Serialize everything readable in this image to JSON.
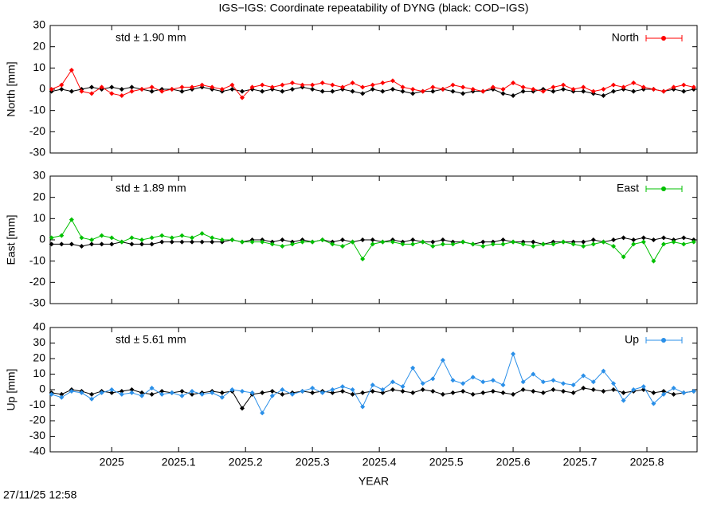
{
  "title": "IGS−IGS: Coordinate repeatability of DYNG (black: COD−IGS)",
  "x_label": "YEAR",
  "timestamp": "27/11/25 12:58",
  "chart_data": [
    {
      "type": "line",
      "y_label": "North [mm]",
      "annotation": "std ± 1.90 mm",
      "annotation_color": "#ff0000",
      "xlim": [
        2024.908,
        2025.875
      ],
      "xticks": [
        2025,
        2025.1,
        2025.2,
        2025.3,
        2025.4,
        2025.5,
        2025.6,
        2025.7,
        2025.8
      ],
      "ylim": [
        -30,
        30
      ],
      "yticks": [
        -30,
        -20,
        -10,
        0,
        10,
        20,
        30
      ],
      "x": [
        2024.91,
        2024.925,
        2024.94,
        2024.955,
        2024.97,
        2024.985,
        2025.0,
        2025.015,
        2025.03,
        2025.045,
        2025.06,
        2025.075,
        2025.09,
        2025.105,
        2025.12,
        2025.135,
        2025.15,
        2025.165,
        2025.18,
        2025.195,
        2025.21,
        2025.225,
        2025.24,
        2025.255,
        2025.27,
        2025.285,
        2025.3,
        2025.315,
        2025.33,
        2025.345,
        2025.36,
        2025.375,
        2025.39,
        2025.405,
        2025.42,
        2025.435,
        2025.45,
        2025.465,
        2025.48,
        2025.495,
        2025.51,
        2025.525,
        2025.54,
        2025.555,
        2025.57,
        2025.585,
        2025.6,
        2025.615,
        2025.63,
        2025.645,
        2025.66,
        2025.675,
        2025.69,
        2025.705,
        2025.72,
        2025.735,
        2025.75,
        2025.765,
        2025.78,
        2025.795,
        2025.81,
        2025.825,
        2025.84,
        2025.855,
        2025.87
      ],
      "series": [
        {
          "color": "#000000",
          "values": [
            -1,
            0,
            -1,
            0,
            1,
            0,
            1,
            0,
            1,
            0,
            -1,
            0,
            0,
            -1,
            0,
            1,
            0,
            -1,
            0,
            -1,
            0,
            -1,
            0,
            -1,
            0,
            1,
            0,
            -1,
            -1,
            0,
            -1,
            -2,
            0,
            -1,
            0,
            -1,
            -2,
            -1,
            -1,
            0,
            -1,
            -2,
            -1,
            -1,
            0,
            -2,
            -3,
            -1,
            -1,
            0,
            -1,
            0,
            -1,
            -1,
            -2,
            -3,
            -1,
            0,
            -1,
            0,
            0,
            -1,
            0,
            -1,
            0
          ]
        },
        {
          "name": "North",
          "color": "#ff0000",
          "values": [
            0,
            2,
            9,
            -1,
            -2,
            1,
            -2,
            -3,
            -1,
            0,
            1,
            -1,
            0,
            1,
            1,
            2,
            1,
            0,
            2,
            -4,
            1,
            2,
            1,
            2,
            3,
            2,
            2,
            3,
            2,
            1,
            3,
            1,
            2,
            3,
            4,
            1,
            0,
            -1,
            1,
            0,
            2,
            1,
            0,
            -1,
            1,
            0,
            3,
            1,
            0,
            -1,
            1,
            2,
            0,
            1,
            -1,
            0,
            2,
            1,
            3,
            1,
            0,
            -1,
            1,
            2,
            1
          ]
        }
      ]
    },
    {
      "type": "line",
      "y_label": "East [mm]",
      "annotation": "std ± 1.89 mm",
      "annotation_color": "#00c000",
      "xlim": [
        2024.908,
        2025.875
      ],
      "xticks": [
        2025,
        2025.1,
        2025.2,
        2025.3,
        2025.4,
        2025.5,
        2025.6,
        2025.7,
        2025.8
      ],
      "ylim": [
        -30,
        30
      ],
      "yticks": [
        -30,
        -20,
        -10,
        0,
        10,
        20,
        30
      ],
      "x": [
        2024.91,
        2024.925,
        2024.94,
        2024.955,
        2024.97,
        2024.985,
        2025.0,
        2025.015,
        2025.03,
        2025.045,
        2025.06,
        2025.075,
        2025.09,
        2025.105,
        2025.12,
        2025.135,
        2025.15,
        2025.165,
        2025.18,
        2025.195,
        2025.21,
        2025.225,
        2025.24,
        2025.255,
        2025.27,
        2025.285,
        2025.3,
        2025.315,
        2025.33,
        2025.345,
        2025.36,
        2025.375,
        2025.39,
        2025.405,
        2025.42,
        2025.435,
        2025.45,
        2025.465,
        2025.48,
        2025.495,
        2025.51,
        2025.525,
        2025.54,
        2025.555,
        2025.57,
        2025.585,
        2025.6,
        2025.615,
        2025.63,
        2025.645,
        2025.66,
        2025.675,
        2025.69,
        2025.705,
        2025.72,
        2025.735,
        2025.75,
        2025.765,
        2025.78,
        2025.795,
        2025.81,
        2025.825,
        2025.84,
        2025.855,
        2025.87
      ],
      "series": [
        {
          "color": "#000000",
          "values": [
            -2,
            -2,
            -2,
            -3,
            -2,
            -2,
            -2,
            -1,
            -2,
            -2,
            -2,
            -1,
            -1,
            -1,
            -1,
            -1,
            -1,
            -1,
            0,
            -1,
            0,
            0,
            -1,
            0,
            -1,
            0,
            -1,
            0,
            -1,
            0,
            -1,
            0,
            0,
            -1,
            0,
            -1,
            0,
            -1,
            -1,
            0,
            -1,
            -1,
            -2,
            -1,
            -1,
            0,
            -1,
            -1,
            -1,
            -2,
            -1,
            -1,
            -1,
            -1,
            0,
            -1,
            0,
            1,
            0,
            1,
            0,
            1,
            0,
            1,
            0
          ]
        },
        {
          "name": "East",
          "color": "#00c000",
          "values": [
            1,
            2,
            9.5,
            1,
            0,
            2,
            1,
            -1,
            1,
            0,
            1,
            2,
            1,
            2,
            1,
            3,
            1,
            0,
            0,
            -1,
            -1,
            -1,
            -2,
            -3,
            -2,
            -1,
            -1,
            0,
            -2,
            -3,
            -1,
            -9,
            -2,
            -1,
            -1,
            -2,
            -2,
            -1,
            -3,
            -2,
            -2,
            -1,
            -2,
            -3,
            -2,
            -2,
            -1,
            -2,
            -3,
            -2,
            -2,
            -1,
            -2,
            -3,
            -2,
            -1,
            -3,
            -8,
            -2,
            -1,
            -10,
            -2,
            -1,
            -2,
            -1
          ]
        }
      ]
    },
    {
      "type": "line",
      "y_label": "Up [mm]",
      "annotation": "std ± 5.61 mm",
      "annotation_color": "#2a8fe8",
      "xlim": [
        2024.908,
        2025.875
      ],
      "xticks": [
        2025,
        2025.1,
        2025.2,
        2025.3,
        2025.4,
        2025.5,
        2025.6,
        2025.7,
        2025.8
      ],
      "ylim": [
        -40,
        40
      ],
      "yticks": [
        -40,
        -30,
        -20,
        -10,
        0,
        10,
        20,
        30,
        40
      ],
      "x": [
        2024.91,
        2024.925,
        2024.94,
        2024.955,
        2024.97,
        2024.985,
        2025.0,
        2025.015,
        2025.03,
        2025.045,
        2025.06,
        2025.075,
        2025.09,
        2025.105,
        2025.12,
        2025.135,
        2025.15,
        2025.165,
        2025.18,
        2025.195,
        2025.21,
        2025.225,
        2025.24,
        2025.255,
        2025.27,
        2025.285,
        2025.3,
        2025.315,
        2025.33,
        2025.345,
        2025.36,
        2025.375,
        2025.39,
        2025.405,
        2025.42,
        2025.435,
        2025.45,
        2025.465,
        2025.48,
        2025.495,
        2025.51,
        2025.525,
        2025.54,
        2025.555,
        2025.57,
        2025.585,
        2025.6,
        2025.615,
        2025.63,
        2025.645,
        2025.66,
        2025.675,
        2025.69,
        2025.705,
        2025.72,
        2025.735,
        2025.75,
        2025.765,
        2025.78,
        2025.795,
        2025.81,
        2025.825,
        2025.84,
        2025.855,
        2025.87
      ],
      "series": [
        {
          "color": "#000000",
          "values": [
            -2,
            -3,
            0,
            -1,
            -3,
            -1,
            -2,
            -1,
            0,
            -2,
            -3,
            -1,
            -2,
            -1,
            -3,
            -2,
            -1,
            -2,
            -1,
            -12,
            -3,
            -2,
            -1,
            -3,
            -2,
            -1,
            -2,
            -1,
            -2,
            -1,
            -3,
            -2,
            -1,
            -2,
            0,
            -1,
            -2,
            0,
            -1,
            -3,
            -2,
            -1,
            -3,
            -2,
            -1,
            -2,
            -3,
            0,
            -1,
            -2,
            0,
            -1,
            -2,
            1,
            0,
            -1,
            0,
            -2,
            -1,
            0,
            -2,
            -1,
            -3,
            -2,
            -1
          ]
        },
        {
          "name": "Up",
          "color": "#2a8fe8",
          "values": [
            -3,
            -5,
            -1,
            -2,
            -6,
            -2,
            0,
            -3,
            -2,
            -4,
            1,
            -3,
            -2,
            -4,
            -1,
            -3,
            -2,
            -5,
            0,
            -1,
            -2,
            -15,
            -4,
            0,
            -3,
            -1,
            1,
            -2,
            0,
            2,
            0,
            -11,
            3,
            0,
            5,
            2,
            14,
            4,
            7,
            19,
            6,
            4,
            8,
            5,
            6,
            3,
            23,
            5,
            10,
            5,
            6,
            4,
            3,
            9,
            5,
            12,
            4,
            -7,
            0,
            2,
            -9,
            -3,
            1,
            -2,
            -1
          ]
        }
      ]
    }
  ]
}
